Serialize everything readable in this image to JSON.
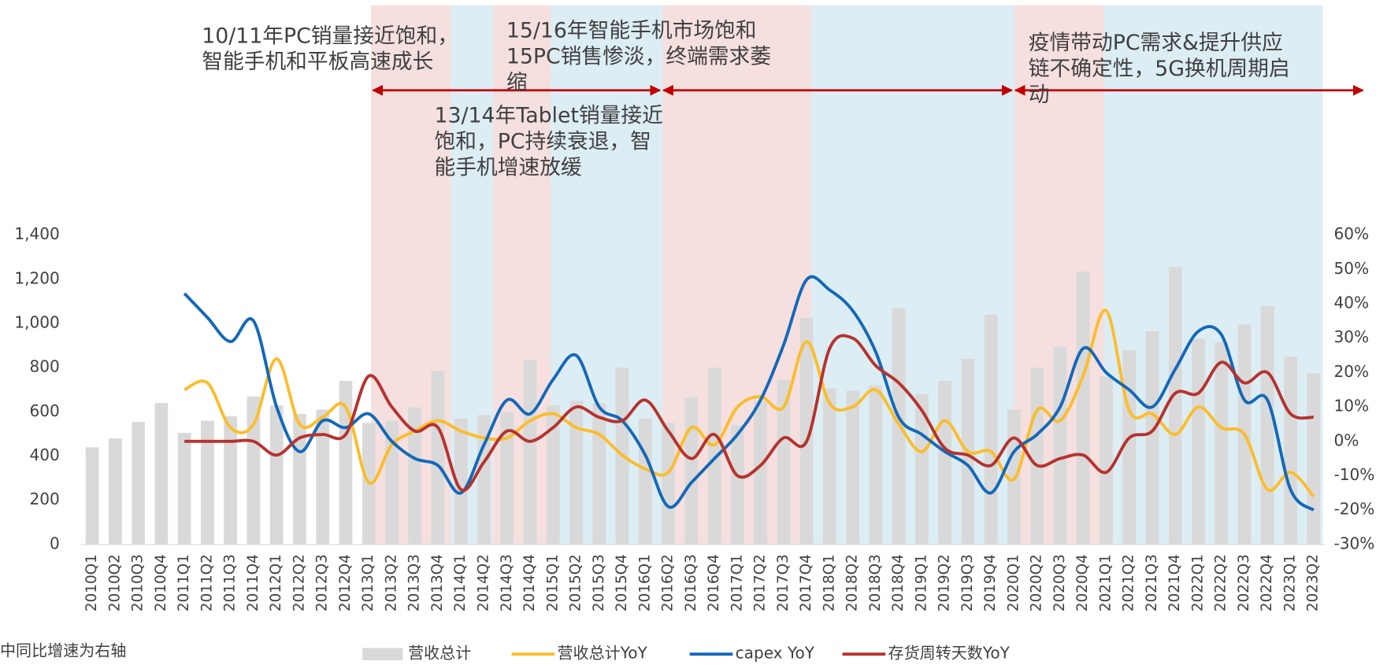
{
  "chart_data": {
    "type": "combo",
    "categories": [
      "2010Q1",
      "2010Q2",
      "2010Q3",
      "2010Q4",
      "2011Q1",
      "2011Q2",
      "2011Q3",
      "2011Q4",
      "2012Q1",
      "2012Q2",
      "2012Q3",
      "2012Q4",
      "2013Q1",
      "2013Q2",
      "2013Q3",
      "2013Q4",
      "2014Q1",
      "2014Q2",
      "2014Q3",
      "2014Q4",
      "2015Q1",
      "2015Q2",
      "2015Q3",
      "2015Q4",
      "2016Q1",
      "2016Q2",
      "2016Q3",
      "2016Q4",
      "2017Q1",
      "2017Q2",
      "2017Q3",
      "2017Q4",
      "2018Q1",
      "2018Q2",
      "2018Q3",
      "2018Q4",
      "2019Q1",
      "2019Q2",
      "2019Q3",
      "2019Q4",
      "2020Q1",
      "2020Q2",
      "2020Q3",
      "2020Q4",
      "2021Q1",
      "2021Q2",
      "2021Q3",
      "2021Q4",
      "2022Q1",
      "2022Q2",
      "2022Q3",
      "2022Q4",
      "2023Q1",
      "2023Q2"
    ],
    "series": [
      {
        "name": "营收总计",
        "type": "bar",
        "color": "#d9d9d9",
        "axis": "y",
        "values": [
          440,
          480,
          555,
          640,
          505,
          560,
          580,
          670,
          630,
          590,
          610,
          740,
          550,
          560,
          620,
          785,
          570,
          585,
          600,
          835,
          630,
          650,
          640,
          800,
          570,
          550,
          665,
          800,
          540,
          650,
          745,
          1025,
          705,
          695,
          720,
          1070,
          680,
          740,
          840,
          1040,
          610,
          800,
          895,
          1235,
          760,
          880,
          965,
          1255,
          930,
          915,
          995,
          1080,
          850,
          775
        ]
      },
      {
        "name": "营收总计YoY",
        "type": "line",
        "color": "#fbbd2e",
        "axis": "y2",
        "values": [
          null,
          null,
          null,
          null,
          15,
          17,
          4,
          5,
          24,
          5,
          7,
          10,
          -12,
          -1,
          3,
          6,
          3,
          1,
          1,
          6,
          8,
          4,
          2,
          -4,
          -8,
          -9,
          4,
          -1,
          10,
          13,
          10,
          29,
          11,
          10,
          15,
          5,
          -3,
          6,
          -3,
          -3,
          -11,
          9,
          6,
          19,
          38,
          9,
          8,
          2,
          10,
          4,
          2,
          -14,
          -9,
          -16
        ]
      },
      {
        "name": "capex YoY",
        "type": "line",
        "color": "#1468b8",
        "axis": "y2",
        "values": [
          null,
          null,
          null,
          null,
          43,
          36,
          29,
          35,
          10,
          -3,
          6,
          4,
          8,
          0,
          -5,
          -7,
          -15,
          -1,
          12,
          8,
          18,
          25,
          10,
          6,
          -4,
          -19,
          -12,
          -5,
          2,
          12,
          28,
          47,
          44,
          38,
          26,
          7,
          2,
          -3,
          -7,
          -15,
          -3,
          2,
          10,
          27,
          20,
          15,
          10,
          21,
          32,
          31,
          12,
          12,
          -14,
          -20
        ]
      },
      {
        "name": "存货周转天数YoY",
        "type": "line",
        "color": "#b5332e",
        "axis": "y2",
        "values": [
          null,
          null,
          null,
          null,
          0,
          0,
          0,
          0,
          -4,
          1,
          2,
          2,
          19,
          10,
          3,
          4,
          -14,
          -6,
          3,
          0,
          4,
          10,
          7,
          6,
          12,
          3,
          -5,
          2,
          -10,
          -7,
          1,
          0,
          27,
          30,
          22,
          17,
          9,
          -2,
          -4,
          -7,
          1,
          -7,
          -5,
          -4,
          -9,
          1,
          3,
          14,
          14,
          23,
          17,
          20,
          8,
          7
        ]
      }
    ],
    "ylim": [
      0,
      1400
    ],
    "yticks": [
      0,
      200,
      400,
      600,
      800,
      {
        "value": 1000,
        "label": "1,000"
      },
      {
        "value": 1200,
        "label": "1,200"
      },
      {
        "value": 1400,
        "label": "1,400"
      }
    ],
    "y2lim": [
      -30,
      60
    ],
    "y2ticks": [
      {
        "value": -30,
        "label": "-30%"
      },
      {
        "value": -20,
        "label": "-20%"
      },
      {
        "value": -10,
        "label": "-10%"
      },
      {
        "value": 0,
        "label": "0%"
      },
      {
        "value": 10,
        "label": "10%"
      },
      {
        "value": 20,
        "label": "20%"
      },
      {
        "value": 30,
        "label": "30%"
      },
      {
        "value": 40,
        "label": "40%"
      },
      {
        "value": 50,
        "label": "50%"
      },
      {
        "value": 60,
        "label": "60%"
      }
    ],
    "annotations": [
      {
        "lines": [
          "10/11年PC销量接近饱和，",
          "智能手机和平板高速成长"
        ]
      },
      {
        "lines": [
          "15/16年智能手机市场饱和",
          "15PC销售惨淡，终端需求萎",
          "缩"
        ]
      },
      {
        "lines": [
          "13/14年Tablet销量接近",
          "饱和，PC持续衰退，智",
          "能手机增速放缓"
        ]
      },
      {
        "lines": [
          "疫情带动PC需求&提升供应",
          "链不确定性，5G换机周期启",
          "动"
        ]
      }
    ],
    "note": "中同比增速为右轴",
    "legend": "bottom"
  }
}
